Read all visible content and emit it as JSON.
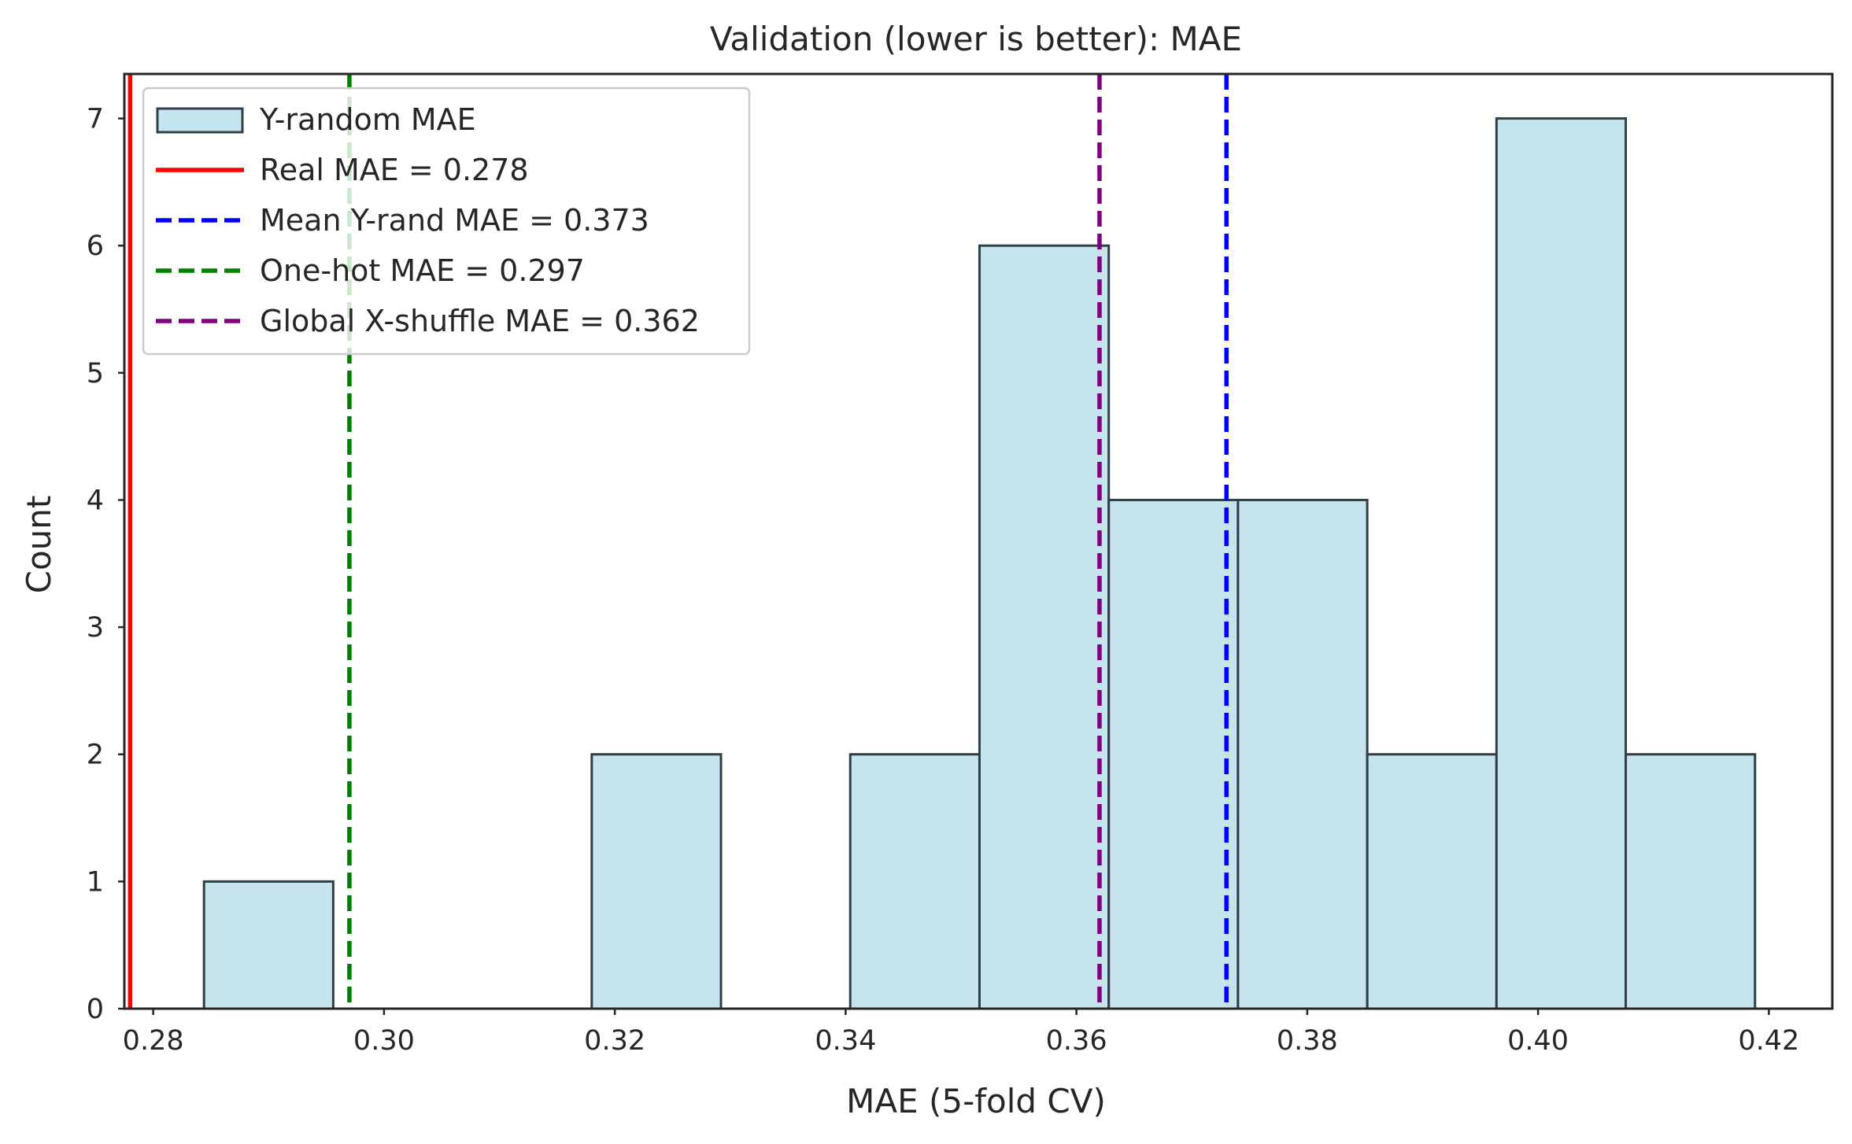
{
  "chart_data": {
    "type": "bar",
    "title": "Validation (lower is better): MAE",
    "xlabel": "MAE (5-fold CV)",
    "ylabel": "Count",
    "xlim": [
      0.2775,
      0.4255
    ],
    "ylim": [
      0,
      7.35
    ],
    "grid": false,
    "legend_position": "top-left",
    "x_ticks": [
      "0.28",
      "0.30",
      "0.32",
      "0.34",
      "0.36",
      "0.38",
      "0.40",
      "0.42"
    ],
    "y_ticks": [
      "0",
      "1",
      "2",
      "3",
      "4",
      "5",
      "6",
      "7"
    ],
    "histogram": {
      "name": "Y-random MAE",
      "color": "#add8e6",
      "edge_color": "#2f3f48",
      "bin_edges": [
        0.2844,
        0.2956,
        0.3068,
        0.318,
        0.3292,
        0.3404,
        0.3516,
        0.3628,
        0.374,
        0.3852,
        0.3964,
        0.4076,
        0.4188
      ],
      "counts": [
        1,
        0,
        0,
        2,
        0,
        2,
        6,
        4,
        4,
        2,
        7,
        2
      ]
    },
    "reference_lines": [
      {
        "name": "Real MAE = 0.278",
        "x": 0.278,
        "color": "#ff0000",
        "style": "solid"
      },
      {
        "name": "Mean Y-rand MAE = 0.373",
        "x": 0.373,
        "color": "#0000ff",
        "style": "dashed"
      },
      {
        "name": "One-hot MAE = 0.297",
        "x": 0.297,
        "color": "#008000",
        "style": "dashed"
      },
      {
        "name": "Global X-shuffle MAE = 0.362",
        "x": 0.362,
        "color": "#800080",
        "style": "dashed"
      }
    ]
  }
}
